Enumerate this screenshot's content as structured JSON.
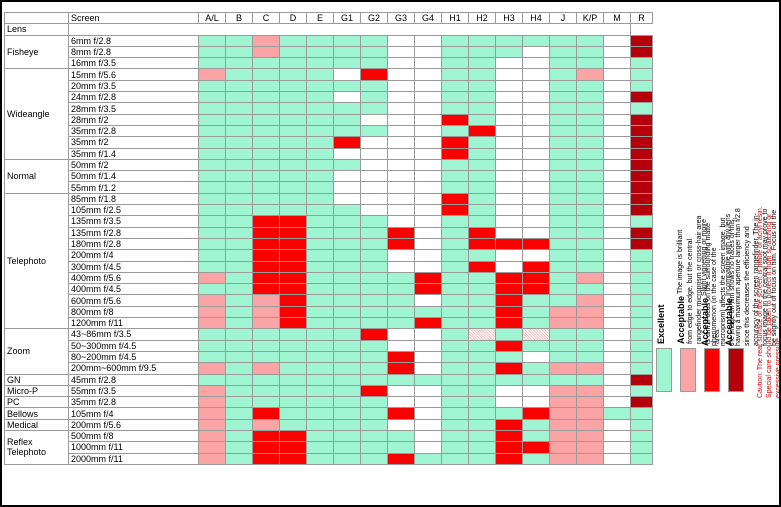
{
  "table": {
    "header_lens": "Lens",
    "header_screen": "Screen",
    "columns": [
      "A/L",
      "B",
      "C",
      "D",
      "E",
      "G1",
      "G2",
      "G3",
      "G4",
      "H1",
      "H2",
      "H3",
      "H4",
      "J",
      "K/P",
      "M",
      "R"
    ],
    "groups": [
      {
        "name": "Fisheye",
        "rows": [
          {
            "lens": "6mm f/2.8",
            "cells": [
              1,
              1,
              2,
              1,
              1,
              1,
              1,
              0,
              0,
              1,
              1,
              1,
              1,
              1,
              1,
              0,
              4
            ]
          },
          {
            "lens": "8mm f/2.8",
            "cells": [
              1,
              1,
              2,
              1,
              1,
              1,
              1,
              0,
              0,
              1,
              1,
              1,
              0,
              1,
              1,
              0,
              4
            ]
          },
          {
            "lens": "16mm f/3.5",
            "cells": [
              1,
              1,
              1,
              1,
              1,
              1,
              1,
              0,
              0,
              1,
              1,
              0,
              0,
              1,
              1,
              0,
              1
            ]
          }
        ]
      },
      {
        "name": "Wideangle",
        "rows": [
          {
            "lens": "15mm f/5.6",
            "cells": [
              2,
              1,
              1,
              1,
              1,
              0,
              3,
              0,
              0,
              1,
              1,
              0,
              0,
              1,
              2,
              0,
              1
            ]
          },
          {
            "lens": "20mm f/3.5",
            "cells": [
              1,
              1,
              1,
              1,
              1,
              1,
              1,
              0,
              0,
              1,
              1,
              0,
              0,
              1,
              1,
              0,
              1
            ]
          },
          {
            "lens": "24mm f/2.8",
            "cells": [
              1,
              1,
              1,
              1,
              1,
              0,
              1,
              0,
              0,
              1,
              1,
              0,
              0,
              1,
              1,
              0,
              4
            ]
          },
          {
            "lens": "28mm f/3.5",
            "cells": [
              1,
              1,
              1,
              1,
              1,
              1,
              1,
              0,
              0,
              1,
              1,
              0,
              0,
              1,
              1,
              0,
              1
            ]
          },
          {
            "lens": "28mm f/2",
            "cells": [
              1,
              1,
              1,
              1,
              1,
              1,
              0,
              0,
              0,
              3,
              1,
              0,
              0,
              1,
              1,
              0,
              4
            ]
          },
          {
            "lens": "35mm f/2.8",
            "cells": [
              1,
              1,
              1,
              1,
              1,
              1,
              1,
              0,
              0,
              1,
              3,
              0,
              0,
              1,
              1,
              0,
              4
            ]
          },
          {
            "lens": "35mm f/2",
            "cells": [
              1,
              1,
              1,
              1,
              1,
              3,
              0,
              0,
              0,
              3,
              1,
              0,
              0,
              1,
              1,
              0,
              4
            ]
          },
          {
            "lens": "35mm f/1.4",
            "cells": [
              1,
              1,
              1,
              1,
              1,
              0,
              0,
              0,
              0,
              3,
              1,
              0,
              0,
              1,
              1,
              0,
              4
            ]
          }
        ]
      },
      {
        "name": "Normal",
        "rows": [
          {
            "lens": "50mm f/2",
            "cells": [
              1,
              1,
              1,
              1,
              1,
              1,
              0,
              0,
              0,
              1,
              1,
              0,
              0,
              1,
              1,
              0,
              4
            ]
          },
          {
            "lens": "50mm f/1.4",
            "cells": [
              1,
              1,
              1,
              1,
              1,
              0,
              0,
              0,
              0,
              1,
              1,
              0,
              0,
              1,
              1,
              0,
              4
            ]
          },
          {
            "lens": "55mm f/1.2",
            "cells": [
              1,
              1,
              1,
              1,
              1,
              0,
              0,
              0,
              0,
              1,
              1,
              0,
              0,
              1,
              1,
              0,
              4
            ]
          }
        ]
      },
      {
        "name": "Telephoto",
        "rows": [
          {
            "lens": "85mm f/1.8",
            "cells": [
              1,
              1,
              1,
              1,
              1,
              0,
              0,
              0,
              0,
              3,
              1,
              0,
              0,
              1,
              1,
              0,
              4
            ]
          },
          {
            "lens": "105mm f/2.5",
            "cells": [
              1,
              1,
              1,
              1,
              1,
              1,
              0,
              0,
              0,
              3,
              1,
              0,
              0,
              1,
              1,
              0,
              4
            ]
          },
          {
            "lens": "135mm f/3.5",
            "cells": [
              1,
              1,
              3,
              3,
              1,
              1,
              1,
              0,
              0,
              1,
              1,
              0,
              0,
              1,
              1,
              0,
              1
            ]
          },
          {
            "lens": "135mm f/2.8",
            "cells": [
              1,
              1,
              3,
              3,
              1,
              1,
              1,
              3,
              0,
              1,
              3,
              0,
              0,
              1,
              1,
              0,
              4
            ]
          },
          {
            "lens": "180mm f/2.8",
            "cells": [
              1,
              1,
              3,
              3,
              1,
              1,
              1,
              3,
              0,
              1,
              3,
              3,
              3,
              1,
              1,
              0,
              4
            ]
          },
          {
            "lens": "200mm f/4",
            "cells": [
              1,
              1,
              3,
              3,
              1,
              1,
              1,
              0,
              0,
              1,
              1,
              0,
              0,
              1,
              1,
              0,
              1
            ]
          },
          {
            "lens": "300mm f/4.5",
            "cells": [
              1,
              1,
              3,
              3,
              1,
              1,
              1,
              0,
              0,
              1,
              3,
              0,
              3,
              1,
              1,
              0,
              1
            ]
          },
          {
            "lens": "400mm f/5.6",
            "cells": [
              2,
              1,
              3,
              3,
              1,
              1,
              1,
              1,
              3,
              1,
              1,
              3,
              3,
              1,
              2,
              0,
              1
            ]
          },
          {
            "lens": "400mm f/4.5",
            "cells": [
              1,
              1,
              3,
              3,
              1,
              1,
              1,
              1,
              3,
              1,
              1,
              3,
              3,
              1,
              1,
              0,
              1
            ]
          },
          {
            "lens": "600mm f/5.6",
            "cells": [
              2,
              1,
              2,
              3,
              1,
              1,
              1,
              1,
              0,
              1,
              1,
              3,
              1,
              1,
              2,
              0,
              1
            ]
          },
          {
            "lens": "800mm f/8",
            "cells": [
              2,
              1,
              2,
              3,
              1,
              1,
              1,
              1,
              1,
              1,
              1,
              3,
              1,
              2,
              2,
              0,
              1
            ]
          },
          {
            "lens": "1200mm f/11",
            "cells": [
              2,
              1,
              2,
              3,
              1,
              1,
              1,
              1,
              3,
              1,
              1,
              3,
              1,
              2,
              2,
              0,
              1
            ]
          }
        ]
      },
      {
        "name": "Zoom",
        "rows": [
          {
            "lens": "43~86mm f/3.5",
            "cells": [
              1,
              1,
              1,
              1,
              1,
              1,
              3,
              0,
              0,
              1,
              5,
              1,
              5,
              1,
              1,
              0,
              1
            ]
          },
          {
            "lens": "50~300mm f/4.5",
            "cells": [
              1,
              1,
              1,
              1,
              1,
              1,
              1,
              0,
              0,
              1,
              1,
              3,
              1,
              1,
              1,
              0,
              1
            ]
          },
          {
            "lens": "80~200mm f/4.5",
            "cells": [
              1,
              1,
              1,
              1,
              1,
              1,
              1,
              3,
              0,
              1,
              1,
              1,
              0,
              1,
              1,
              0,
              1
            ]
          },
          {
            "lens": "200mm~600mm f/9.5",
            "cells": [
              2,
              1,
              2,
              1,
              1,
              1,
              1,
              3,
              0,
              1,
              1,
              3,
              1,
              2,
              2,
              0,
              1
            ]
          }
        ]
      },
      {
        "name": "GN",
        "rows": [
          {
            "lens": "45mm f/2.8",
            "cells": [
              1,
              1,
              1,
              1,
              1,
              1,
              1,
              1,
              1,
              1,
              1,
              1,
              1,
              1,
              1,
              0,
              4
            ]
          }
        ]
      },
      {
        "name": "Micro-P",
        "rows": [
          {
            "lens": "55mm f/3.5",
            "cells": [
              2,
              1,
              1,
              1,
              1,
              1,
              3,
              0,
              0,
              1,
              1,
              0,
              0,
              2,
              2,
              0,
              1
            ]
          }
        ]
      },
      {
        "name": "PC",
        "rows": [
          {
            "lens": "35mm f/2.8",
            "cells": [
              2,
              1,
              1,
              1,
              1,
              1,
              1,
              0,
              0,
              1,
              1,
              0,
              0,
              2,
              2,
              0,
              4
            ]
          }
        ]
      },
      {
        "name": "Bellows",
        "rows": [
          {
            "lens": "105mm f/4",
            "cells": [
              2,
              1,
              3,
              1,
              1,
              1,
              1,
              3,
              0,
              1,
              1,
              1,
              3,
              2,
              2,
              1,
              1
            ]
          }
        ]
      },
      {
        "name": "Medical",
        "rows": [
          {
            "lens": "200mm f/5.6",
            "cells": [
              2,
              1,
              2,
              1,
              1,
              1,
              1,
              0,
              0,
              1,
              1,
              3,
              1,
              2,
              2,
              0,
              1
            ]
          }
        ]
      },
      {
        "name": "Reflex Telephoto",
        "rows": [
          {
            "lens": "500mm f/8",
            "cells": [
              2,
              1,
              3,
              3,
              1,
              1,
              1,
              1,
              0,
              1,
              1,
              3,
              1,
              2,
              2,
              0,
              1
            ]
          },
          {
            "lens": "1000mm f/11",
            "cells": [
              2,
              1,
              3,
              3,
              1,
              1,
              1,
              1,
              0,
              1,
              1,
              3,
              3,
              2,
              2,
              0,
              1
            ]
          },
          {
            "lens": "2000mm f/11",
            "cells": [
              2,
              1,
              3,
              3,
              1,
              1,
              1,
              3,
              1,
              1,
              1,
              3,
              1,
              2,
              2,
              0,
              1
            ]
          }
        ]
      }
    ]
  },
  "rating_colors": [
    "#ffffff",
    "#9ff5d2",
    "#fba4a6",
    "#fb0000",
    "#b4000a",
    "#f7c3c3"
  ],
  "legend": {
    "excellent_title": "Excellent",
    "accept1_title": "Acceptable",
    "accept1_text": "The image is brilliant from edge to edge, but the central rangefinder microprism or cross-hair area is dim. Focus on the surrounding matte area.",
    "accept2_title": "Acceptable",
    "accept2_text": "Slight vignetting or moire phenomenon (in the case of the microprism) affects the screen image, but the image on film shows no traces of this.",
    "accept3_title": "Acceptable",
    "accept3_text": "Incompatible with any lens having a maximum aperture larger than f/2.8 since this decreases the efficiency and accuracy of the screen rangefinder. The in-focus image in the central spot may prove to be slightly out of focus on film. Focus on the surrounding matte area.",
    "caution_text": "Caution: The rear surface of the screen is made of acryl resin. Special care should be taken to protect it from scratching or excessive pressure."
  }
}
